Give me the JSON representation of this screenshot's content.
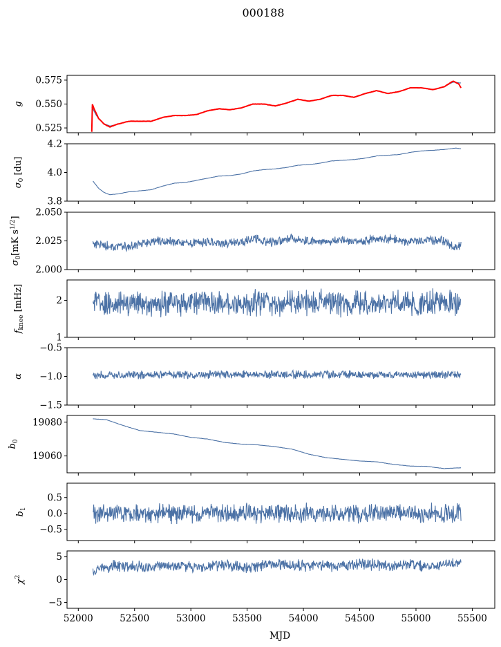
{
  "figure": {
    "title": "000188",
    "xlabel": "MJD"
  },
  "chart_data": [
    {
      "type": "line",
      "ylabel": "g",
      "ylim": [
        0.52,
        0.58
      ],
      "yticks": [
        0.525,
        0.55,
        0.575
      ],
      "ytick_labels": [
        "0.525",
        "0.550",
        "0.575"
      ],
      "xlim": [
        51900,
        55700
      ],
      "series": [
        {
          "color": "#4c72a6",
          "values": [
            [
              52120,
              0.547
            ],
            [
              52160,
              0.538
            ],
            [
              52220,
              0.53
            ],
            [
              52280,
              0.527
            ],
            [
              52350,
              0.529
            ],
            [
              52450,
              0.532
            ],
            [
              52550,
              0.532
            ],
            [
              52650,
              0.532
            ],
            [
              52750,
              0.536
            ],
            [
              52850,
              0.538
            ],
            [
              52950,
              0.538
            ],
            [
              53050,
              0.539
            ],
            [
              53150,
              0.543
            ],
            [
              53250,
              0.545
            ],
            [
              53350,
              0.544
            ],
            [
              53450,
              0.546
            ],
            [
              53550,
              0.55
            ],
            [
              53650,
              0.55
            ],
            [
              53750,
              0.548
            ],
            [
              53850,
              0.551
            ],
            [
              53950,
              0.555
            ],
            [
              54050,
              0.553
            ],
            [
              54150,
              0.555
            ],
            [
              54250,
              0.559
            ],
            [
              54350,
              0.559
            ],
            [
              54450,
              0.557
            ],
            [
              54550,
              0.561
            ],
            [
              54650,
              0.564
            ],
            [
              54750,
              0.561
            ],
            [
              54850,
              0.563
            ],
            [
              54950,
              0.567
            ],
            [
              55050,
              0.567
            ],
            [
              55150,
              0.565
            ],
            [
              55250,
              0.568
            ],
            [
              55330,
              0.573
            ],
            [
              55400,
              0.572
            ]
          ]
        },
        {
          "color": "#ff0000",
          "values": [
            [
              52120,
              0.521
            ],
            [
              52125,
              0.55
            ],
            [
              52140,
              0.545
            ],
            [
              52180,
              0.535
            ],
            [
              52230,
              0.529
            ],
            [
              52280,
              0.526
            ],
            [
              52350,
              0.529
            ],
            [
              52450,
              0.532
            ],
            [
              52550,
              0.532
            ],
            [
              52650,
              0.532
            ],
            [
              52750,
              0.536
            ],
            [
              52850,
              0.538
            ],
            [
              52950,
              0.538
            ],
            [
              53050,
              0.539
            ],
            [
              53150,
              0.543
            ],
            [
              53250,
              0.545
            ],
            [
              53350,
              0.544
            ],
            [
              53450,
              0.546
            ],
            [
              53550,
              0.55
            ],
            [
              53650,
              0.55
            ],
            [
              53750,
              0.548
            ],
            [
              53850,
              0.551
            ],
            [
              53950,
              0.555
            ],
            [
              54050,
              0.553
            ],
            [
              54150,
              0.555
            ],
            [
              54250,
              0.559
            ],
            [
              54350,
              0.559
            ],
            [
              54450,
              0.557
            ],
            [
              54550,
              0.561
            ],
            [
              54650,
              0.564
            ],
            [
              54750,
              0.561
            ],
            [
              54850,
              0.563
            ],
            [
              54950,
              0.567
            ],
            [
              55050,
              0.567
            ],
            [
              55150,
              0.565
            ],
            [
              55250,
              0.568
            ],
            [
              55330,
              0.574
            ],
            [
              55380,
              0.571
            ],
            [
              55400,
              0.567
            ]
          ]
        }
      ]
    },
    {
      "type": "line",
      "ylabel": "σ0 [du]",
      "ylim": [
        3.8,
        4.2
      ],
      "yticks": [
        3.8,
        4.0,
        4.2
      ],
      "ytick_labels": [
        "3.8",
        "4.0",
        "4.2"
      ],
      "xlim": [
        51900,
        55700
      ],
      "series": [
        {
          "color": "#4c72a6",
          "values": [
            [
              52130,
              3.94
            ],
            [
              52180,
              3.89
            ],
            [
              52230,
              3.86
            ],
            [
              52280,
              3.845
            ],
            [
              52350,
              3.85
            ],
            [
              52450,
              3.865
            ],
            [
              52550,
              3.872
            ],
            [
              52650,
              3.88
            ],
            [
              52750,
              3.905
            ],
            [
              52850,
              3.925
            ],
            [
              52950,
              3.93
            ],
            [
              53050,
              3.945
            ],
            [
              53150,
              3.96
            ],
            [
              53250,
              3.975
            ],
            [
              53350,
              3.978
            ],
            [
              53450,
              3.99
            ],
            [
              53550,
              4.01
            ],
            [
              53650,
              4.02
            ],
            [
              53750,
              4.025
            ],
            [
              53850,
              4.035
            ],
            [
              53950,
              4.05
            ],
            [
              54050,
              4.055
            ],
            [
              54150,
              4.065
            ],
            [
              54250,
              4.08
            ],
            [
              54350,
              4.085
            ],
            [
              54450,
              4.09
            ],
            [
              54550,
              4.1
            ],
            [
              54650,
              4.115
            ],
            [
              54750,
              4.12
            ],
            [
              54850,
              4.125
            ],
            [
              54950,
              4.14
            ],
            [
              55050,
              4.15
            ],
            [
              55150,
              4.155
            ],
            [
              55250,
              4.16
            ],
            [
              55350,
              4.17
            ],
            [
              55400,
              4.165
            ]
          ]
        }
      ]
    },
    {
      "type": "line",
      "ylabel": "σ0[mK s^1/2]",
      "ylim": [
        2.0,
        2.05
      ],
      "yticks": [
        2.0,
        2.025,
        2.05
      ],
      "ytick_labels": [
        "2.000",
        "2.025",
        "2.050"
      ],
      "xlim": [
        51900,
        55700
      ],
      "series": [
        {
          "color": "#4c72a6",
          "noise": 0.003,
          "values": [
            [
              52130,
              2.023
            ],
            [
              52250,
              2.021
            ],
            [
              52400,
              2.02
            ],
            [
              52550,
              2.022
            ],
            [
              52700,
              2.025
            ],
            [
              52850,
              2.024
            ],
            [
              53000,
              2.023
            ],
            [
              53150,
              2.024
            ],
            [
              53300,
              2.022
            ],
            [
              53450,
              2.025
            ],
            [
              53600,
              2.026
            ],
            [
              53750,
              2.024
            ],
            [
              53900,
              2.027
            ],
            [
              54050,
              2.025
            ],
            [
              54200,
              2.024
            ],
            [
              54350,
              2.026
            ],
            [
              54500,
              2.024
            ],
            [
              54650,
              2.027
            ],
            [
              54800,
              2.027
            ],
            [
              54950,
              2.024
            ],
            [
              55100,
              2.026
            ],
            [
              55250,
              2.025
            ],
            [
              55350,
              2.019
            ],
            [
              55400,
              2.021
            ]
          ]
        }
      ]
    },
    {
      "type": "line",
      "ylabel": "fknee [mHz]",
      "ylim": [
        1,
        2.55
      ],
      "yticks": [
        1,
        2
      ],
      "ytick_labels": [
        "1",
        "2"
      ],
      "xlim": [
        51900,
        55700
      ],
      "series": [
        {
          "color": "#4c72a6",
          "noise": 0.25,
          "values": [
            [
              52130,
              1.95
            ],
            [
              52500,
              1.9
            ],
            [
              53000,
              1.95
            ],
            [
              53500,
              1.92
            ],
            [
              54000,
              1.95
            ],
            [
              54500,
              1.9
            ],
            [
              55000,
              1.95
            ],
            [
              55400,
              1.9
            ]
          ]
        }
      ]
    },
    {
      "type": "line",
      "ylabel": "α",
      "ylim": [
        -1.5,
        -0.5
      ],
      "yticks": [
        -1.5,
        -1.0,
        -0.5
      ],
      "ytick_labels": [
        "−1.5",
        "−1.0",
        "−0.5"
      ],
      "xlim": [
        51900,
        55700
      ],
      "series": [
        {
          "color": "#4c72a6",
          "noise": 0.05,
          "values": [
            [
              52130,
              -0.98
            ],
            [
              52800,
              -0.97
            ],
            [
              53500,
              -0.97
            ],
            [
              54200,
              -0.97
            ],
            [
              54900,
              -0.97
            ],
            [
              55400,
              -0.97
            ]
          ]
        }
      ]
    },
    {
      "type": "line",
      "ylabel": "b0",
      "ylim": [
        19050,
        19084
      ],
      "yticks": [
        19060,
        19080
      ],
      "ytick_labels": [
        "19060",
        "19080"
      ],
      "xlim": [
        51900,
        55700
      ],
      "series": [
        {
          "color": "#4c72a6",
          "values": [
            [
              52130,
              19082
            ],
            [
              52250,
              19081.5
            ],
            [
              52400,
              19078
            ],
            [
              52550,
              19075
            ],
            [
              52700,
              19074
            ],
            [
              52850,
              19073
            ],
            [
              53000,
              19071
            ],
            [
              53150,
              19070
            ],
            [
              53300,
              19068
            ],
            [
              53450,
              19067
            ],
            [
              53600,
              19066.5
            ],
            [
              53750,
              19065.5
            ],
            [
              53900,
              19064
            ],
            [
              54050,
              19061
            ],
            [
              54200,
              19059
            ],
            [
              54350,
              19058
            ],
            [
              54500,
              19057
            ],
            [
              54650,
              19056.5
            ],
            [
              54800,
              19055
            ],
            [
              54950,
              19054
            ],
            [
              55100,
              19053.8
            ],
            [
              55250,
              19052.5
            ],
            [
              55400,
              19053
            ]
          ]
        }
      ]
    },
    {
      "type": "line",
      "ylabel": "b1",
      "ylim": [
        -0.85,
        0.95
      ],
      "yticks": [
        -0.5,
        0.0,
        0.5
      ],
      "ytick_labels": [
        "−0.5",
        "0.0",
        "0.5"
      ],
      "xlim": [
        51900,
        55700
      ],
      "series": [
        {
          "color": "#4c72a6",
          "noise": 0.22,
          "values": [
            [
              52130,
              0.0
            ],
            [
              52800,
              0.0
            ],
            [
              53500,
              0.0
            ],
            [
              54200,
              0.0
            ],
            [
              54900,
              0.0
            ],
            [
              55400,
              0.0
            ]
          ]
        }
      ]
    },
    {
      "type": "line",
      "ylabel": "χ²",
      "ylim": [
        -6.3,
        6.3
      ],
      "yticks": [
        -5,
        0,
        5
      ],
      "ytick_labels": [
        "−5",
        "0",
        "5"
      ],
      "xlim": [
        51900,
        55700
      ],
      "xticks": [
        52000,
        52500,
        53000,
        53500,
        54000,
        54500,
        55000,
        55500
      ],
      "series": [
        {
          "color": "#4c72a6",
          "noise": 0.9,
          "values": [
            [
              52130,
              2.0
            ],
            [
              52300,
              3.0
            ],
            [
              52500,
              3.0
            ],
            [
              52700,
              2.8
            ],
            [
              52900,
              3.2
            ],
            [
              53100,
              2.7
            ],
            [
              53300,
              3.3
            ],
            [
              53500,
              2.6
            ],
            [
              53700,
              3.5
            ],
            [
              53900,
              3.0
            ],
            [
              54100,
              3.2
            ],
            [
              54300,
              2.8
            ],
            [
              54500,
              3.5
            ],
            [
              54700,
              3.0
            ],
            [
              54900,
              3.2
            ],
            [
              55100,
              2.8
            ],
            [
              55300,
              3.6
            ],
            [
              55400,
              3.4
            ]
          ]
        }
      ]
    }
  ]
}
